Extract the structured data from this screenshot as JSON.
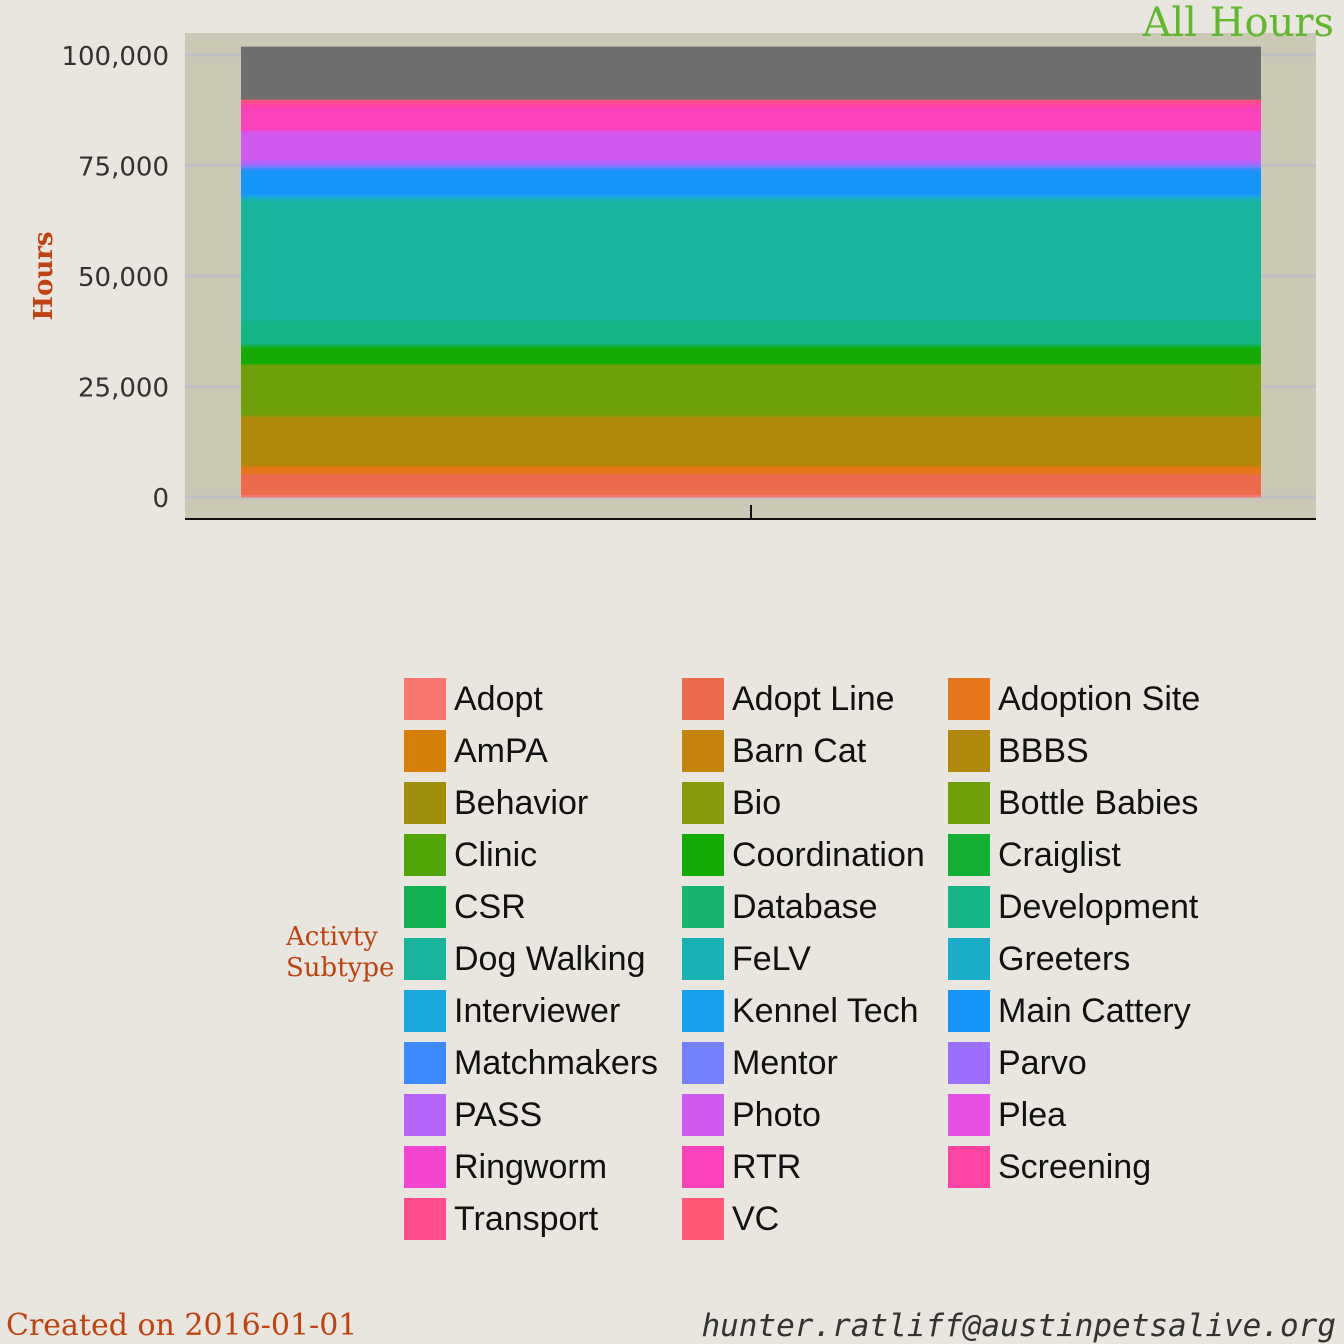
{
  "chart_data": {
    "type": "bar",
    "stacked": true,
    "title": "All Hours",
    "ylabel": "Hours",
    "xlabel": "",
    "ylim": [
      0,
      104000
    ],
    "yticks": [
      0,
      25000,
      50000,
      75000,
      100000
    ],
    "ytick_labels": [
      "0",
      "25,000",
      "50,000",
      "75,000",
      "100,000"
    ],
    "grid": true,
    "legend_title": "Activty Subtype",
    "legend_position": "bottom",
    "categories": [
      ""
    ],
    "series": [
      {
        "name": "Adopt",
        "color": "#F8766D",
        "values": [
          600
        ]
      },
      {
        "name": "Adopt Line",
        "color": "#EC6B4C",
        "values": [
          4600
        ]
      },
      {
        "name": "Adoption Site",
        "color": "#E6761C",
        "values": [
          1500
        ]
      },
      {
        "name": "AmPA",
        "color": "#D77E07",
        "values": [
          300
        ]
      },
      {
        "name": "Barn Cat",
        "color": "#C4830A",
        "values": [
          300
        ]
      },
      {
        "name": "BBBS",
        "color": "#B0890A",
        "values": [
          10800
        ]
      },
      {
        "name": "Behavior",
        "color": "#9E8F0A",
        "values": [
          200
        ]
      },
      {
        "name": "Bio",
        "color": "#889A0A",
        "values": [
          300
        ]
      },
      {
        "name": "Bottle Babies",
        "color": "#6FA00A",
        "values": [
          11300
        ]
      },
      {
        "name": "Clinic",
        "color": "#4FA606",
        "values": [
          300
        ]
      },
      {
        "name": "Coordination",
        "color": "#14AB05",
        "values": [
          3700
        ]
      },
      {
        "name": "Craiglist",
        "color": "#13B034",
        "values": [
          300
        ]
      },
      {
        "name": "CSR",
        "color": "#12B150",
        "values": [
          300
        ]
      },
      {
        "name": "Database",
        "color": "#16B46E",
        "values": [
          300
        ]
      },
      {
        "name": "Development",
        "color": "#14B586",
        "values": [
          5200
        ]
      },
      {
        "name": "Dog Walking",
        "color": "#19B49D",
        "values": [
          27000
        ]
      },
      {
        "name": "FeLV",
        "color": "#19B2B4",
        "values": [
          600
        ]
      },
      {
        "name": "Greeters",
        "color": "#19ADC9",
        "values": [
          300
        ]
      },
      {
        "name": "Interviewer",
        "color": "#18A8DD",
        "values": [
          300
        ]
      },
      {
        "name": "Kennel Tech",
        "color": "#17A0EE",
        "values": [
          300
        ]
      },
      {
        "name": "Main Cattery",
        "color": "#1594FA",
        "values": [
          5500
        ]
      },
      {
        "name": "Matchmakers",
        "color": "#3D89FF",
        "values": [
          600
        ]
      },
      {
        "name": "Mentor",
        "color": "#7580FF",
        "values": [
          500
        ]
      },
      {
        "name": "Parvo",
        "color": "#9C6EFF",
        "values": [
          300
        ]
      },
      {
        "name": "PASS",
        "color": "#B464FA",
        "values": [
          800
        ]
      },
      {
        "name": "Photo",
        "color": "#D059F0",
        "values": [
          6400
        ]
      },
      {
        "name": "Plea",
        "color": "#E64FE3",
        "values": [
          300
        ]
      },
      {
        "name": "Ringworm",
        "color": "#F244CE",
        "values": [
          300
        ]
      },
      {
        "name": "RTR",
        "color": "#FA42BA",
        "values": [
          4900
        ]
      },
      {
        "name": "Screening",
        "color": "#FF45A3",
        "values": [
          1000
        ]
      },
      {
        "name": "Transport",
        "color": "#FF4D8E",
        "values": [
          600
        ]
      },
      {
        "name": "VC",
        "color": "#FF5876",
        "values": [
          300
        ]
      },
      {
        "name": "",
        "color": "#6E6E6E",
        "values": [
          11900
        ]
      }
    ]
  },
  "legend_title": "Activty Subtype",
  "footer": {
    "left": "Created on 2016-01-01",
    "right": "hunter.ratliff@austinpetsalive.org"
  },
  "colors": {
    "background": "#e8e6de",
    "panel": "#cbc8b6",
    "gridline": "#bfbfc4",
    "title": "#5fb82e",
    "accent": "#c0420e"
  }
}
